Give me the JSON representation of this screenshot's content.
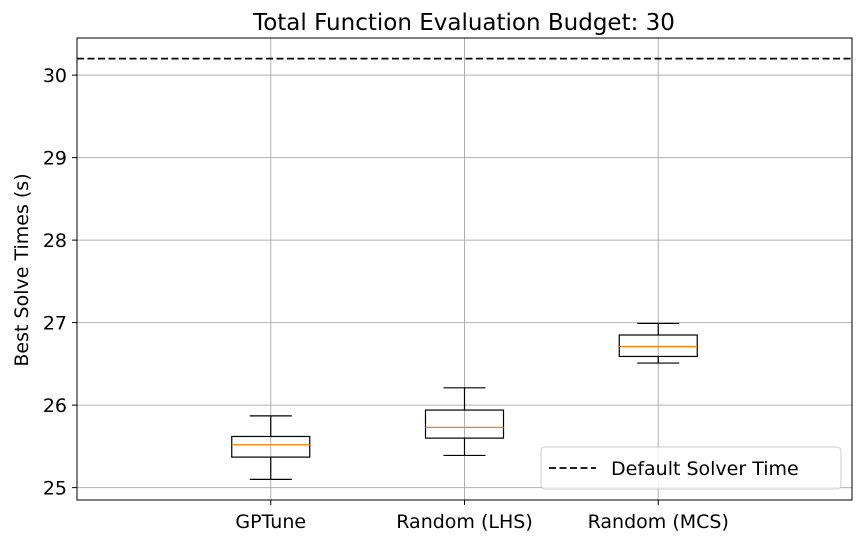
{
  "chart_data": {
    "type": "box",
    "title": "Total Function Evaluation Budget: 30",
    "xlabel": "",
    "ylabel": "Best Solve Times (s)",
    "ylim": [
      24.85,
      30.45
    ],
    "yticks": [
      25,
      26,
      27,
      28,
      29,
      30
    ],
    "grid": true,
    "categories": [
      "GPTune",
      "Random (LHS)",
      "Random (MCS)"
    ],
    "boxes": [
      {
        "category": "GPTune",
        "whisker_low": 25.1,
        "q1": 25.37,
        "median": 25.52,
        "q3": 25.62,
        "whisker_high": 25.87
      },
      {
        "category": "Random (LHS)",
        "whisker_low": 25.39,
        "q1": 25.6,
        "median": 25.73,
        "q3": 25.94,
        "whisker_high": 26.21
      },
      {
        "category": "Random (MCS)",
        "whisker_low": 26.51,
        "q1": 26.59,
        "median": 26.71,
        "q3": 26.85,
        "whisker_high": 26.99
      }
    ],
    "reference_line": {
      "label": "Default Solver Time",
      "value": 30.2,
      "style": "dashed",
      "color": "#000000"
    },
    "legend": {
      "placement": "lower-right",
      "entries": [
        "Default Solver Time"
      ]
    },
    "colors": {
      "box": "#000000",
      "median": "#ff7f0e",
      "grid": "#b0b0b0"
    }
  }
}
